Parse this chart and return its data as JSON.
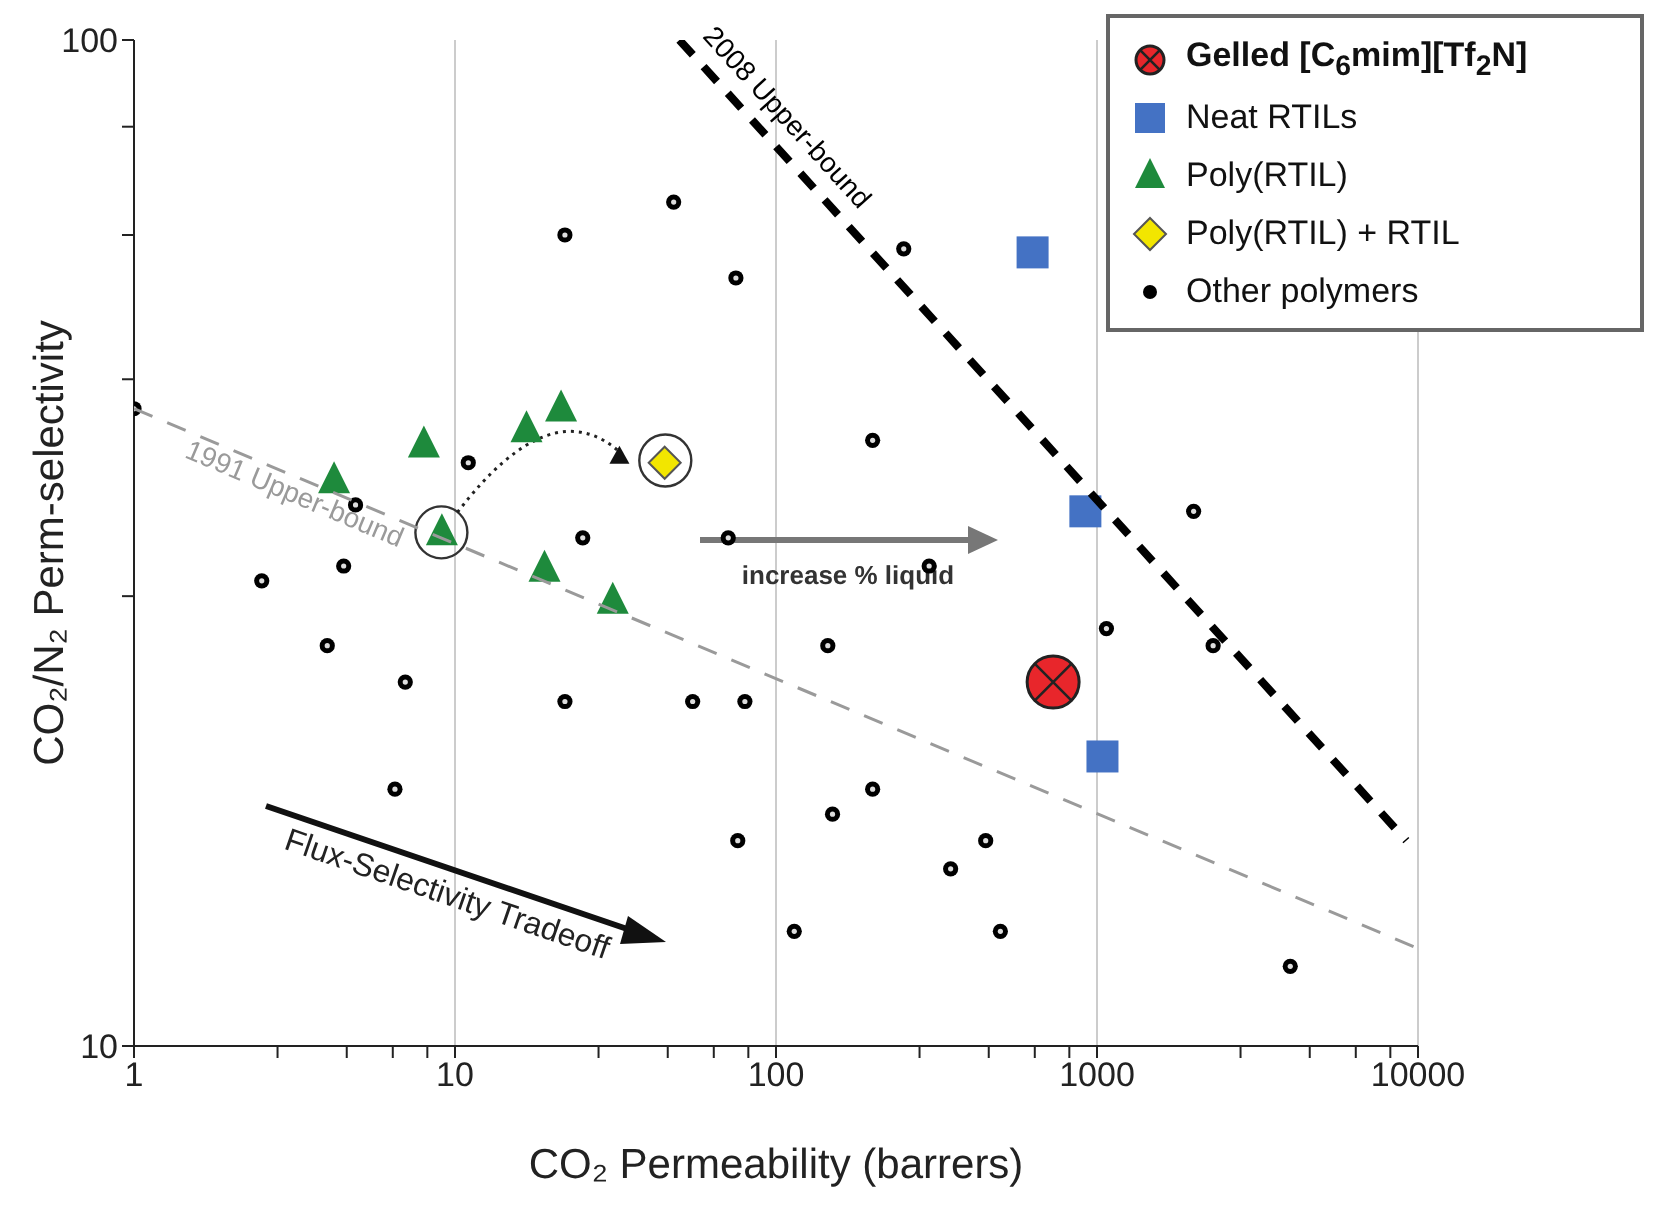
{
  "chart_data": {
    "type": "scatter",
    "xlabel": "CO₂ Permeability (barrers)",
    "ylabel": "CO₂/N₂ Perm-selectivity",
    "log": "xy",
    "xlim": [
      1,
      10000
    ],
    "ylim": [
      10,
      100
    ],
    "xticks": [
      1,
      {
        "value": 2.8,
        "label": null
      },
      {
        "value": 4.6,
        "label": null
      },
      {
        "value": 6.4,
        "label": null
      },
      {
        "value": 8.2,
        "label": null
      },
      10,
      {
        "value": 28,
        "label": null
      },
      {
        "value": 46,
        "label": null
      },
      {
        "value": 64,
        "label": null
      },
      {
        "value": 82,
        "label": null
      },
      100,
      {
        "value": 280,
        "label": null
      },
      {
        "value": 460,
        "label": null
      },
      {
        "value": 640,
        "label": null
      },
      {
        "value": 820,
        "label": null
      },
      1000,
      {
        "value": 2800,
        "label": null
      },
      {
        "value": 4600,
        "label": null
      },
      {
        "value": 6400,
        "label": null
      },
      {
        "value": 8200,
        "label": null
      },
      10000
    ],
    "yticks": [
      10,
      {
        "value": 28,
        "label": null
      },
      {
        "value": 46,
        "label": null
      },
      {
        "value": 64,
        "label": null
      },
      {
        "value": 82,
        "label": null
      },
      100
    ],
    "grid": "x",
    "legend": "top right",
    "series": [
      {
        "name": "Gelled [C$_{6}$mim][Tf$_{2}$N]",
        "marker": "circle",
        "color": "#e8262b",
        "x": [
          730
        ],
        "values": [
          23
        ]
      },
      {
        "name": "Neat RTILs",
        "marker": "square",
        "color": "#4472c4",
        "x": [
          630,
          920,
          1040
        ],
        "values": [
          61.5,
          34,
          19.4
        ]
      },
      {
        "name": "Poly(RTIL)",
        "marker": "triangle",
        "color": "#1e8a3c",
        "x": [
          4.2,
          8,
          16.7,
          21.4,
          9.1,
          19,
          31
        ],
        "values": [
          36.5,
          39.6,
          41,
          43,
          32.4,
          29.8,
          27.7
        ]
      },
      {
        "name": "Poly(RTIL) + RTIL",
        "marker": "diamond",
        "color": "#f2e600",
        "x": [
          45
        ],
        "values": [
          38
        ]
      },
      {
        "name": "Other polymers",
        "marker": "circle",
        "color": "#000000",
        "x": [
          1,
          22,
          48,
          75,
          200,
          11,
          4.9,
          4.5,
          2.5,
          25,
          71,
          250,
          300,
          2000,
          1070,
          4,
          7,
          22,
          55,
          80,
          145,
          6.5,
          76,
          150,
          200,
          114,
          2300,
          450,
          350,
          500,
          4000
        ],
        "values": [
          43,
          64,
          69,
          58,
          40,
          38,
          34.5,
          30,
          29,
          32,
          32,
          62,
          30,
          34,
          26,
          25,
          23,
          22,
          22,
          22,
          25,
          18,
          16,
          17,
          18,
          13,
          25,
          16,
          15,
          13,
          12
        ]
      },
      {
        "name": "1991 Upper-bound",
        "type": "line",
        "line_style": "dashed",
        "marker": "none",
        "color": "#9a9a9a",
        "x": [
          1,
          10000
        ],
        "values": [
          43,
          12.5
        ]
      },
      {
        "name": "2008 Upper-bound",
        "type": "line",
        "line_style": "dashed",
        "marker": "none",
        "color": "#000000",
        "x": [
          50,
          9200
        ],
        "values": [
          100,
          16
        ]
      }
    ],
    "annotations": [
      "increase % liquid",
      "Flux-Selectivity Tradeoff"
    ]
  }
}
